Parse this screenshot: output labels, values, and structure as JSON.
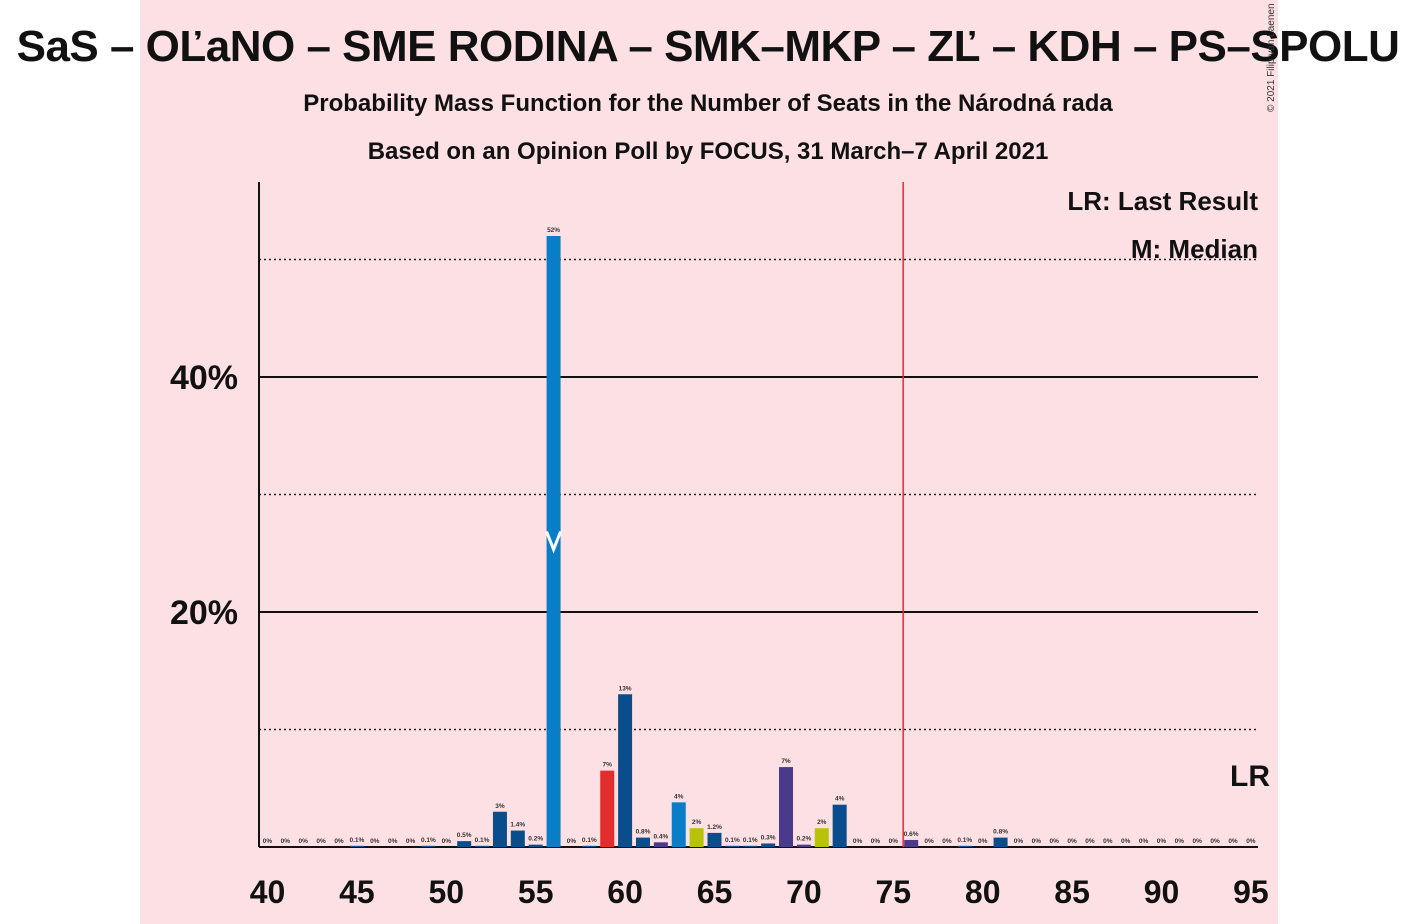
{
  "title": "SaS – OĽaNO – SME RODINA – SMK–MKP – ZĽ – KDH – PS–SPOLU",
  "subtitle1": "Probability Mass Function for the Number of Seats in the Národná rada",
  "subtitle2": "Based on an Opinion Poll by FOCUS, 31 March–7 April 2021",
  "copyright": "© 2021 Filip van Laenen",
  "legend": {
    "lr": "LR: Last Result",
    "m": "M: Median"
  },
  "colors": {
    "background_band": "#fde0e3",
    "blue": "#0a4d8c",
    "median_blue": "#0a7dc8",
    "red": "#e32d2d",
    "olive": "#b5c40a",
    "purple": "#4a3a8c",
    "last_result_line": "#e32d2d"
  },
  "chart_data": {
    "type": "bar",
    "xlabel": "",
    "ylabel": "",
    "xlim": [
      40,
      95
    ],
    "ylim": [
      0,
      56
    ],
    "x_ticks": [
      40,
      45,
      50,
      55,
      60,
      65,
      70,
      75,
      80,
      85,
      90,
      95
    ],
    "y_ticks": [
      {
        "value": 20,
        "label": "20%"
      },
      {
        "value": 40,
        "label": "40%"
      }
    ],
    "y_gridlines_solid": [
      20,
      40
    ],
    "y_gridlines_dotted": [
      10,
      30,
      50
    ],
    "last_result": {
      "seats": 76,
      "label": "LR"
    },
    "median": {
      "seats": 56
    },
    "bars": [
      {
        "x": 40,
        "value": 0,
        "label": "0%",
        "color": "blue"
      },
      {
        "x": 41,
        "value": 0,
        "label": "0%",
        "color": "blue"
      },
      {
        "x": 42,
        "value": 0,
        "label": "0%",
        "color": "blue"
      },
      {
        "x": 43,
        "value": 0,
        "label": "0%",
        "color": "blue"
      },
      {
        "x": 44,
        "value": 0,
        "label": "0%",
        "color": "blue"
      },
      {
        "x": 45,
        "value": 0.1,
        "label": "0.1%",
        "color": "blue"
      },
      {
        "x": 46,
        "value": 0,
        "label": "0%",
        "color": "blue"
      },
      {
        "x": 47,
        "value": 0,
        "label": "0%",
        "color": "blue"
      },
      {
        "x": 48,
        "value": 0,
        "label": "0%",
        "color": "blue"
      },
      {
        "x": 49,
        "value": 0.1,
        "label": "0.1%",
        "color": "blue"
      },
      {
        "x": 50,
        "value": 0,
        "label": "0%",
        "color": "blue"
      },
      {
        "x": 51,
        "value": 0.5,
        "label": "0.5%",
        "color": "blue"
      },
      {
        "x": 52,
        "value": 0.1,
        "label": "0.1%",
        "color": "blue"
      },
      {
        "x": 53,
        "value": 3,
        "label": "3%",
        "color": "blue"
      },
      {
        "x": 54,
        "value": 1.4,
        "label": "1.4%",
        "color": "blue"
      },
      {
        "x": 55,
        "value": 0.2,
        "label": "0.2%",
        "color": "blue"
      },
      {
        "x": 56,
        "value": 52,
        "label": "52%",
        "color": "median_blue"
      },
      {
        "x": 57,
        "value": 0,
        "label": "0%",
        "color": "blue"
      },
      {
        "x": 58,
        "value": 0.1,
        "label": "0.1%",
        "color": "blue"
      },
      {
        "x": 59,
        "value": 6.5,
        "label": "7%",
        "color": "red"
      },
      {
        "x": 60,
        "value": 13,
        "label": "13%",
        "color": "blue"
      },
      {
        "x": 61,
        "value": 0.8,
        "label": "0.8%",
        "color": "blue"
      },
      {
        "x": 62,
        "value": 0.4,
        "label": "0.4%",
        "color": "purple"
      },
      {
        "x": 63,
        "value": 3.8,
        "label": "4%",
        "color": "median_blue"
      },
      {
        "x": 64,
        "value": 1.6,
        "label": "2%",
        "color": "olive"
      },
      {
        "x": 65,
        "value": 1.2,
        "label": "1.2%",
        "color": "blue"
      },
      {
        "x": 66,
        "value": 0.1,
        "label": "0.1%",
        "color": "blue"
      },
      {
        "x": 67,
        "value": 0.1,
        "label": "0.1%",
        "color": "blue"
      },
      {
        "x": 68,
        "value": 0.3,
        "label": "0.3%",
        "color": "blue"
      },
      {
        "x": 69,
        "value": 6.8,
        "label": "7%",
        "color": "purple"
      },
      {
        "x": 70,
        "value": 0.2,
        "label": "0.2%",
        "color": "purple"
      },
      {
        "x": 71,
        "value": 1.6,
        "label": "2%",
        "color": "olive"
      },
      {
        "x": 72,
        "value": 3.6,
        "label": "4%",
        "color": "blue"
      },
      {
        "x": 73,
        "value": 0,
        "label": "0%",
        "color": "blue"
      },
      {
        "x": 74,
        "value": 0,
        "label": "0%",
        "color": "blue"
      },
      {
        "x": 75,
        "value": 0,
        "label": "0%",
        "color": "blue"
      },
      {
        "x": 76,
        "value": 0.6,
        "label": "0.6%",
        "color": "purple"
      },
      {
        "x": 77,
        "value": 0,
        "label": "0%",
        "color": "blue"
      },
      {
        "x": 78,
        "value": 0,
        "label": "0%",
        "color": "blue"
      },
      {
        "x": 79,
        "value": 0.1,
        "label": "0.1%",
        "color": "blue"
      },
      {
        "x": 80,
        "value": 0,
        "label": "0%",
        "color": "blue"
      },
      {
        "x": 81,
        "value": 0.8,
        "label": "0.8%",
        "color": "blue"
      },
      {
        "x": 82,
        "value": 0,
        "label": "0%",
        "color": "blue"
      },
      {
        "x": 83,
        "value": 0,
        "label": "0%",
        "color": "blue"
      },
      {
        "x": 84,
        "value": 0,
        "label": "0%",
        "color": "blue"
      },
      {
        "x": 85,
        "value": 0,
        "label": "0%",
        "color": "blue"
      },
      {
        "x": 86,
        "value": 0,
        "label": "0%",
        "color": "blue"
      },
      {
        "x": 87,
        "value": 0,
        "label": "0%",
        "color": "blue"
      },
      {
        "x": 88,
        "value": 0,
        "label": "0%",
        "color": "blue"
      },
      {
        "x": 89,
        "value": 0,
        "label": "0%",
        "color": "blue"
      },
      {
        "x": 90,
        "value": 0,
        "label": "0%",
        "color": "blue"
      },
      {
        "x": 91,
        "value": 0,
        "label": "0%",
        "color": "blue"
      },
      {
        "x": 92,
        "value": 0,
        "label": "0%",
        "color": "blue"
      },
      {
        "x": 93,
        "value": 0,
        "label": "0%",
        "color": "blue"
      },
      {
        "x": 94,
        "value": 0,
        "label": "0%",
        "color": "blue"
      },
      {
        "x": 95,
        "value": 0,
        "label": "0%",
        "color": "blue"
      }
    ]
  }
}
